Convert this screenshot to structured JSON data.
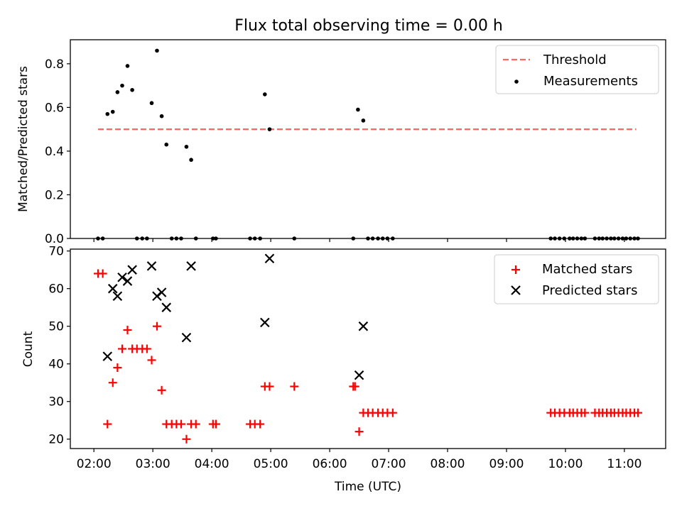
{
  "figure": {
    "title": "Flux total observing time = 0.00 h"
  },
  "chart_data": [
    {
      "type": "scatter",
      "ylabel": "Matched/Predicted stars",
      "xlim": [
        1.6,
        11.7
      ],
      "ylim": [
        0,
        0.91
      ],
      "yticks": [
        0.0,
        0.2,
        0.4,
        0.6,
        0.8
      ],
      "ytick_labels": [
        "0.0",
        "0.2",
        "0.4",
        "0.6",
        "0.8"
      ],
      "grid": false,
      "legend_position": "upper right",
      "threshold": {
        "name": "Threshold",
        "y": 0.5,
        "x_range": [
          2.07,
          11.2
        ],
        "color": "#ff6666",
        "style": "dashed"
      },
      "series": [
        {
          "name": "Measurements",
          "marker": "dot",
          "color": "#000000",
          "x": [
            2.07,
            2.15,
            2.23,
            2.32,
            2.4,
            2.48,
            2.57,
            2.65,
            2.73,
            2.82,
            2.9,
            2.98,
            3.07,
            3.15,
            3.23,
            3.32,
            3.4,
            3.48,
            3.57,
            3.65,
            3.73,
            4.02,
            4.07,
            4.65,
            4.73,
            4.82,
            4.9,
            4.98,
            5.4,
            6.4,
            6.48,
            6.57,
            6.65,
            6.73,
            6.82,
            6.9,
            6.98,
            7.07,
            9.75,
            9.82,
            9.9,
            9.98,
            10.07,
            10.13,
            10.2,
            10.27,
            10.33,
            10.5,
            10.57,
            10.63,
            10.7,
            10.77,
            10.83,
            10.9,
            10.97,
            11.03,
            11.1,
            11.17,
            11.23
          ],
          "y": [
            0,
            0,
            0.57,
            0.58,
            0.67,
            0.7,
            0.79,
            0.68,
            0,
            0,
            0,
            0.62,
            0.86,
            0.56,
            0.43,
            0,
            0,
            0,
            0.42,
            0.36,
            0,
            0,
            0,
            0,
            0,
            0,
            0.66,
            0.5,
            0,
            0,
            0.59,
            0.54,
            0,
            0,
            0,
            0,
            0,
            0,
            0,
            0,
            0,
            0,
            0,
            0,
            0,
            0,
            0,
            0,
            0,
            0,
            0,
            0,
            0,
            0,
            0,
            0,
            0,
            0,
            0
          ]
        }
      ]
    },
    {
      "type": "scatter",
      "xlabel": "Time (UTC)",
      "ylabel": "Count",
      "xlim": [
        1.6,
        11.7
      ],
      "ylim": [
        17.5,
        70.5
      ],
      "xticks": [
        2,
        3,
        4,
        5,
        6,
        7,
        8,
        9,
        10,
        11
      ],
      "xtick_labels": [
        "02:00",
        "03:00",
        "04:00",
        "05:00",
        "06:00",
        "07:00",
        "08:00",
        "09:00",
        "10:00",
        "11:00"
      ],
      "yticks": [
        20,
        30,
        40,
        50,
        60,
        70
      ],
      "ytick_labels": [
        "20",
        "30",
        "40",
        "50",
        "60",
        "70"
      ],
      "grid": false,
      "legend_position": "upper right",
      "series": [
        {
          "name": "Matched stars",
          "marker": "plus",
          "color": "#ff0000",
          "x": [
            2.07,
            2.15,
            2.23,
            2.32,
            2.4,
            2.48,
            2.57,
            2.65,
            2.73,
            2.82,
            2.9,
            2.98,
            3.07,
            3.15,
            3.23,
            3.32,
            3.4,
            3.48,
            3.57,
            3.65,
            3.73,
            4.02,
            4.07,
            4.65,
            4.73,
            4.82,
            4.9,
            4.98,
            5.4,
            6.4,
            6.43,
            6.5,
            6.57,
            6.65,
            6.73,
            6.82,
            6.9,
            6.98,
            7.07,
            9.75,
            9.82,
            9.9,
            9.98,
            10.07,
            10.13,
            10.2,
            10.27,
            10.33,
            10.5,
            10.57,
            10.63,
            10.7,
            10.77,
            10.83,
            10.9,
            10.97,
            11.03,
            11.1,
            11.17,
            11.23
          ],
          "y": [
            64,
            64,
            24,
            35,
            39,
            44,
            49,
            44,
            44,
            44,
            44,
            41,
            50,
            33,
            24,
            24,
            24,
            24,
            20,
            24,
            24,
            24,
            24,
            24,
            24,
            24,
            34,
            34,
            34,
            34,
            34,
            22,
            27,
            27,
            27,
            27,
            27,
            27,
            27,
            27,
            27,
            27,
            27,
            27,
            27,
            27,
            27,
            27,
            27,
            27,
            27,
            27,
            27,
            27,
            27,
            27,
            27,
            27,
            27,
            27
          ]
        },
        {
          "name": "Predicted stars",
          "marker": "x",
          "color": "#000000",
          "x": [
            2.23,
            2.32,
            2.4,
            2.48,
            2.57,
            2.65,
            2.98,
            3.07,
            3.15,
            3.23,
            3.57,
            3.65,
            4.9,
            4.98,
            6.5,
            6.57
          ],
          "y": [
            42,
            60,
            58,
            63,
            62,
            65,
            66,
            58,
            59,
            55,
            47,
            66,
            51,
            68,
            37,
            50
          ]
        }
      ]
    }
  ]
}
